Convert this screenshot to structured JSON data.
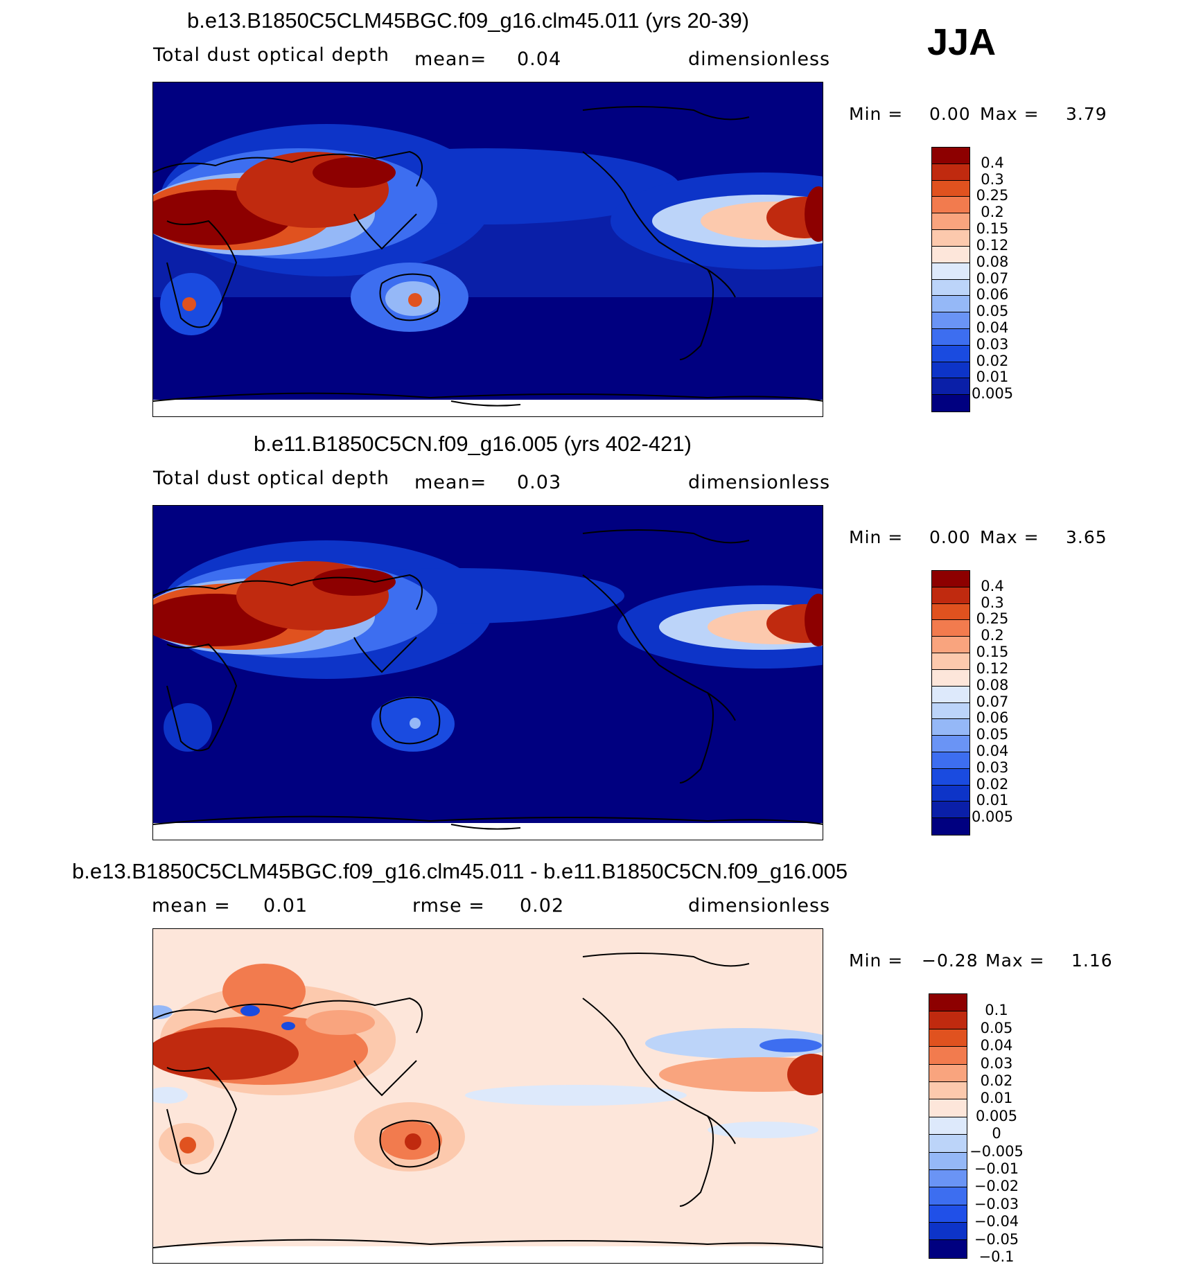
{
  "season": "JJA",
  "colors": {
    "abs": [
      "#000080",
      "#0a1fa8",
      "#0d34c8",
      "#1a4be0",
      "#3d6ef0",
      "#6a94f5",
      "#95b8f7",
      "#bcd4f9",
      "#dde9fb",
      "#fde6da",
      "#fcc9ad",
      "#f9a47e",
      "#f27b4e",
      "#e0521f",
      "#c02a0f",
      "#8d0000"
    ],
    "diff": [
      "#000080",
      "#0d34c8",
      "#2050e8",
      "#3d6ef0",
      "#6a94f5",
      "#95b8f7",
      "#bcd4f9",
      "#dde9fb",
      "#fde6da",
      "#fcc9ad",
      "#f9a47e",
      "#f27b4e",
      "#e0521f",
      "#c02a0f",
      "#8d0000"
    ]
  },
  "chart_data": [
    {
      "type": "heatmap",
      "title": "b.e13.B1850C5CLM45BGC.f09_g16.clm45.011 (yrs 20-39)",
      "variable": "Total dust optical depth",
      "mean_label": "mean=",
      "mean": "0.04",
      "units": "dimensionless",
      "min_label": "Min =",
      "min": "0.00",
      "max_label": "Max =",
      "max": "3.79",
      "colorbar_levels": [
        "0.4",
        "0.3",
        "0.25",
        "0.2",
        "0.15",
        "0.12",
        "0.08",
        "0.07",
        "0.06",
        "0.05",
        "0.04",
        "0.03",
        "0.02",
        "0.01",
        "0.005"
      ]
    },
    {
      "type": "heatmap",
      "title": "b.e11.B1850C5CN.f09_g16.005 (yrs 402-421)",
      "variable": "Total dust optical depth",
      "mean_label": "mean=",
      "mean": "0.03",
      "units": "dimensionless",
      "min_label": "Min =",
      "min": "0.00",
      "max_label": "Max =",
      "max": "3.65",
      "colorbar_levels": [
        "0.4",
        "0.3",
        "0.25",
        "0.2",
        "0.15",
        "0.12",
        "0.08",
        "0.07",
        "0.06",
        "0.05",
        "0.04",
        "0.03",
        "0.02",
        "0.01",
        "0.005"
      ]
    },
    {
      "type": "heatmap",
      "title": "b.e13.B1850C5CLM45BGC.f09_g16.clm45.011 - b.e11.B1850C5CN.f09_g16.005",
      "mean_label": "mean =",
      "mean": "0.01",
      "rmse_label": "rmse =",
      "rmse": "0.02",
      "units": "dimensionless",
      "min_label": "Min =",
      "min": "−0.28",
      "max_label": "Max =",
      "max": "1.16",
      "colorbar_levels": [
        "0.1",
        "0.05",
        "0.04",
        "0.03",
        "0.02",
        "0.01",
        "0.005",
        "0",
        "−0.005",
        "−0.01",
        "−0.02",
        "−0.03",
        "−0.04",
        "−0.05",
        "−0.1"
      ]
    }
  ]
}
